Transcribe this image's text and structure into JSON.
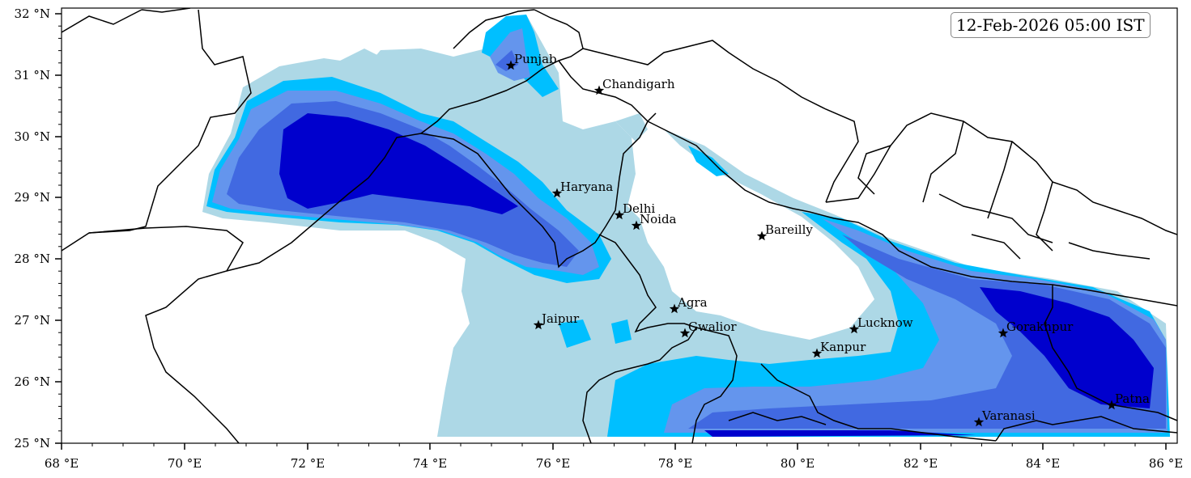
{
  "timestamp": "12-Feb-2026 05:00 IST",
  "colors": {
    "level1": "#add8e6",
    "level2": "#00bfff",
    "level3": "#6495ed",
    "level4": "#4169e1",
    "level5": "#0000cd",
    "borders": "#000000"
  },
  "axes": {
    "x_ticks": [
      "68 °E",
      "70 °E",
      "72 °E",
      "74 °E",
      "76 °E",
      "78 °E",
      "80 °E",
      "82 °E",
      "84 °E",
      "86 °E"
    ],
    "y_ticks": [
      "32 °N",
      "31 °N",
      "30 °N",
      "29 °N",
      "28 °N",
      "27 °N",
      "26 °N",
      "25 °N"
    ]
  },
  "cities": [
    {
      "name": "Punjab"
    },
    {
      "name": "Chandigarh"
    },
    {
      "name": "Haryana"
    },
    {
      "name": "Delhi"
    },
    {
      "name": "Noida"
    },
    {
      "name": "Bareilly"
    },
    {
      "name": "Agra"
    },
    {
      "name": "Jaipur"
    },
    {
      "name": "Gwalior"
    },
    {
      "name": "Lucknow"
    },
    {
      "name": "Kanpur"
    },
    {
      "name": "Gorakhpur"
    },
    {
      "name": "Varanasi"
    },
    {
      "name": "Patna"
    }
  ]
}
